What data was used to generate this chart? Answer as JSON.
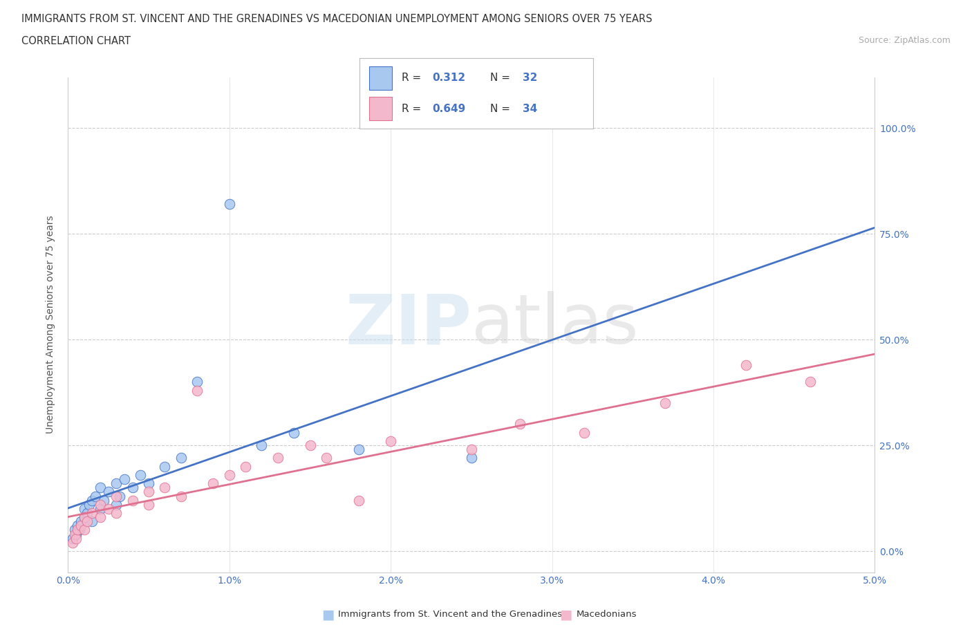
{
  "title_line1": "IMMIGRANTS FROM ST. VINCENT AND THE GRENADINES VS MACEDONIAN UNEMPLOYMENT AMONG SENIORS OVER 75 YEARS",
  "title_line2": "CORRELATION CHART",
  "source": "Source: ZipAtlas.com",
  "ylabel": "Unemployment Among Seniors over 75 years",
  "xlim": [
    0.0,
    0.05
  ],
  "ylim": [
    -0.05,
    1.12
  ],
  "xticks": [
    0.0,
    0.01,
    0.02,
    0.03,
    0.04,
    0.05
  ],
  "xticklabels": [
    "0.0%",
    "1.0%",
    "2.0%",
    "3.0%",
    "4.0%",
    "5.0%"
  ],
  "yticks": [
    0.0,
    0.25,
    0.5,
    0.75,
    1.0
  ],
  "yticklabels": [
    "0.0%",
    "25.0%",
    "50.0%",
    "75.0%",
    "100.0%"
  ],
  "r1": "0.312",
  "n1": "32",
  "r2": "0.649",
  "n2": "34",
  "color_blue": "#a8c8f0",
  "color_pink": "#f4b8cc",
  "edge_blue": "#4472c4",
  "edge_pink": "#e07090",
  "trend_blue_color": "#4472c4",
  "trend_pink_color": "#e07090",
  "label_blue": "Immigrants from St. Vincent and the Grenadines",
  "label_pink": "Macedonians",
  "blue_x": [
    0.0003,
    0.0004,
    0.0005,
    0.0006,
    0.0007,
    0.0008,
    0.001,
    0.001,
    0.0012,
    0.0013,
    0.0015,
    0.0015,
    0.0017,
    0.002,
    0.002,
    0.0022,
    0.0025,
    0.003,
    0.003,
    0.0032,
    0.0035,
    0.004,
    0.0045,
    0.005,
    0.006,
    0.007,
    0.008,
    0.01,
    0.012,
    0.014,
    0.018,
    0.025
  ],
  "blue_y": [
    0.03,
    0.05,
    0.04,
    0.06,
    0.05,
    0.07,
    0.08,
    0.1,
    0.09,
    0.11,
    0.07,
    0.12,
    0.13,
    0.1,
    0.15,
    0.12,
    0.14,
    0.11,
    0.16,
    0.13,
    0.17,
    0.15,
    0.18,
    0.16,
    0.2,
    0.22,
    0.4,
    0.82,
    0.25,
    0.28,
    0.24,
    0.22
  ],
  "pink_x": [
    0.0003,
    0.0004,
    0.0005,
    0.0006,
    0.0008,
    0.001,
    0.001,
    0.0012,
    0.0015,
    0.002,
    0.002,
    0.0025,
    0.003,
    0.003,
    0.004,
    0.005,
    0.005,
    0.006,
    0.007,
    0.008,
    0.009,
    0.01,
    0.011,
    0.013,
    0.015,
    0.016,
    0.018,
    0.02,
    0.025,
    0.028,
    0.032,
    0.037,
    0.042,
    0.046
  ],
  "pink_y": [
    0.02,
    0.04,
    0.03,
    0.05,
    0.06,
    0.05,
    0.08,
    0.07,
    0.09,
    0.08,
    0.11,
    0.1,
    0.09,
    0.13,
    0.12,
    0.11,
    0.14,
    0.15,
    0.13,
    0.38,
    0.16,
    0.18,
    0.2,
    0.22,
    0.25,
    0.22,
    0.12,
    0.26,
    0.24,
    0.3,
    0.28,
    0.35,
    0.44,
    0.4
  ]
}
